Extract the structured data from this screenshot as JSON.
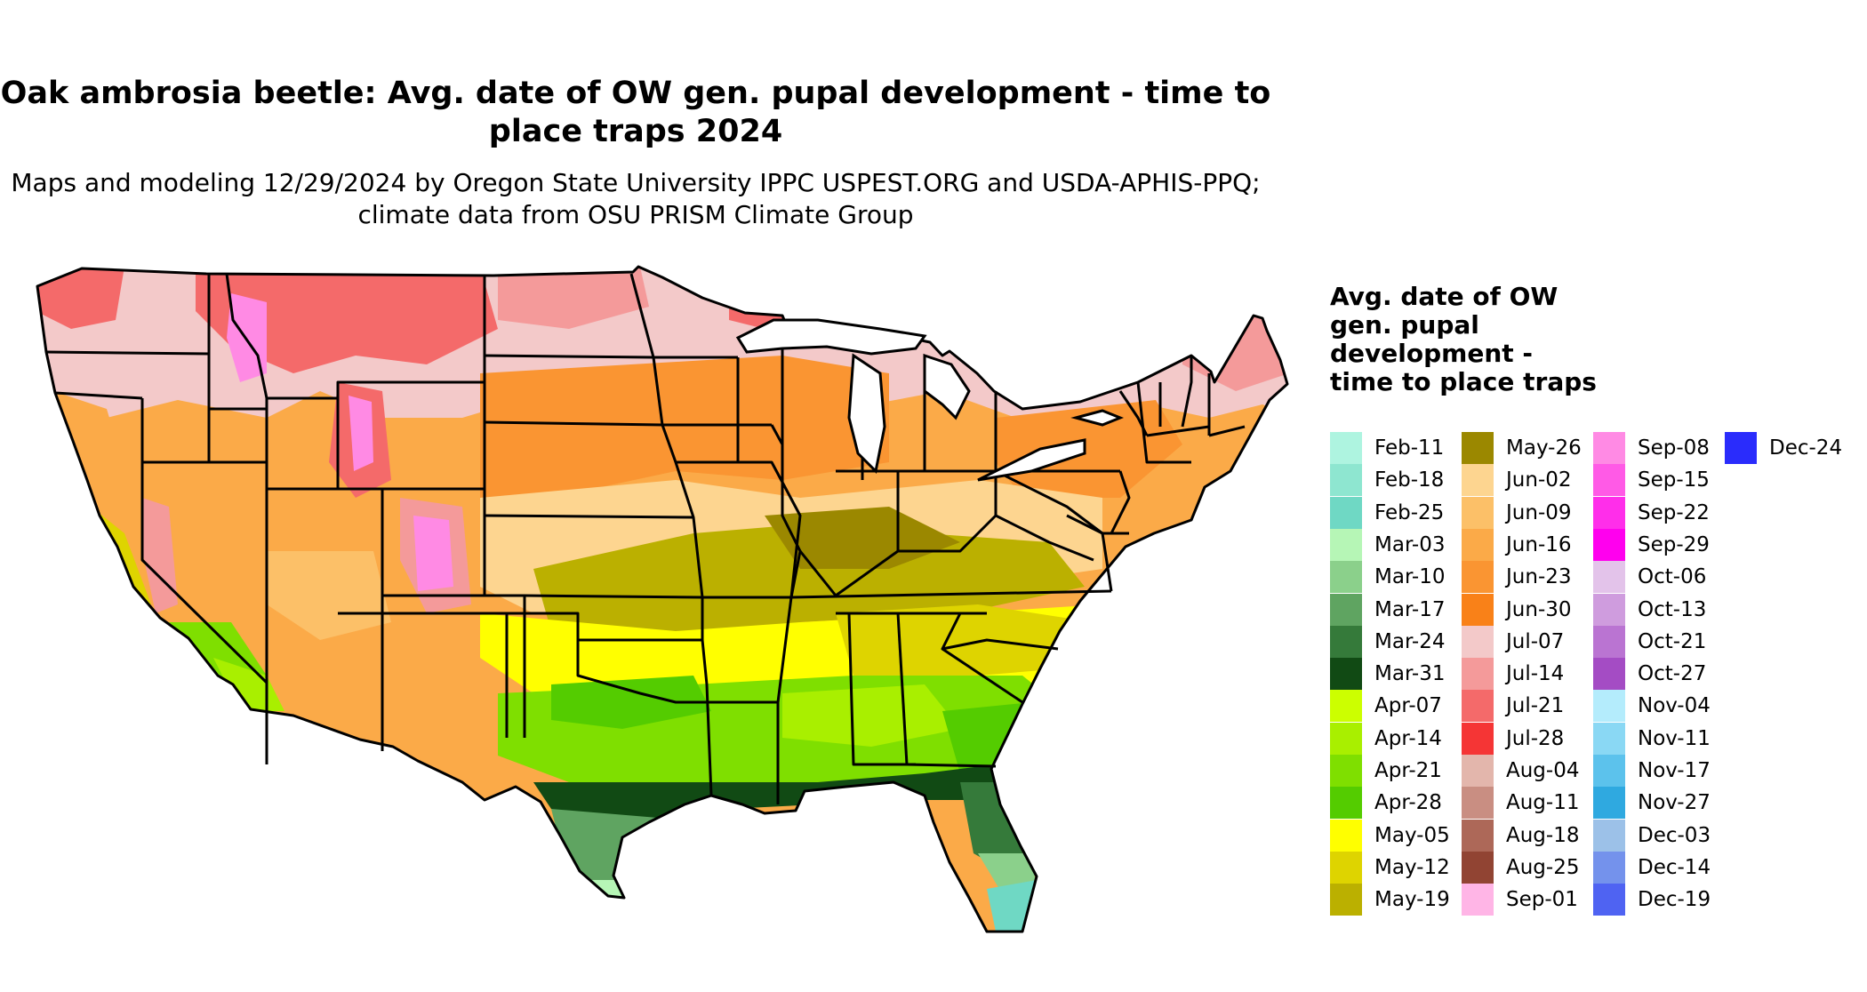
{
  "title": "Oak ambrosia beetle: Avg. date of OW gen. pupal development - time to place traps 2024",
  "subtitle": "Maps and modeling 12/29/2024 by Oregon State University IPPC USPEST.ORG and USDA-APHIS-PPQ; climate data from OSU PRISM Climate Group",
  "legend": {
    "title": "Avg. date of OW gen. pupal development - time to place traps",
    "items": [
      {
        "label": "Feb-11",
        "color": "#aef4e0"
      },
      {
        "label": "Feb-18",
        "color": "#8ee6d0"
      },
      {
        "label": "Feb-25",
        "color": "#6fd8c4"
      },
      {
        "label": "Mar-03",
        "color": "#b6f6b6"
      },
      {
        "label": "Mar-10",
        "color": "#8bd08b"
      },
      {
        "label": "Mar-17",
        "color": "#5fa461"
      },
      {
        "label": "Mar-24",
        "color": "#357a3a"
      },
      {
        "label": "Mar-31",
        "color": "#114a14"
      },
      {
        "label": "Apr-07",
        "color": "#ccff00"
      },
      {
        "label": "Apr-14",
        "color": "#a9ef00"
      },
      {
        "label": "Apr-21",
        "color": "#7fdf00"
      },
      {
        "label": "Apr-28",
        "color": "#54cc00"
      },
      {
        "label": "May-05",
        "color": "#ffff00"
      },
      {
        "label": "May-12",
        "color": "#ded400"
      },
      {
        "label": "May-19",
        "color": "#bbb000"
      },
      {
        "label": "May-26",
        "color": "#9b8800"
      },
      {
        "label": "Jun-02",
        "color": "#fdd590"
      },
      {
        "label": "Jun-09",
        "color": "#fcc068"
      },
      {
        "label": "Jun-16",
        "color": "#fbaa48"
      },
      {
        "label": "Jun-23",
        "color": "#fa9532"
      },
      {
        "label": "Jun-30",
        "color": "#f98118"
      },
      {
        "label": "Jul-07",
        "color": "#f3c9c9"
      },
      {
        "label": "Jul-14",
        "color": "#f49a9a"
      },
      {
        "label": "Jul-21",
        "color": "#f46a6a"
      },
      {
        "label": "Jul-28",
        "color": "#f53535"
      },
      {
        "label": "Aug-04",
        "color": "#e3b6ac"
      },
      {
        "label": "Aug-11",
        "color": "#c98e82"
      },
      {
        "label": "Aug-18",
        "color": "#ad6858"
      },
      {
        "label": "Aug-25",
        "color": "#914433"
      },
      {
        "label": "Sep-01",
        "color": "#ffb5e6"
      },
      {
        "label": "Sep-08",
        "color": "#ff8ae4"
      },
      {
        "label": "Sep-15",
        "color": "#ff5ae6"
      },
      {
        "label": "Sep-22",
        "color": "#ff2eea"
      },
      {
        "label": "Sep-29",
        "color": "#ff00ee"
      },
      {
        "label": "Oct-06",
        "color": "#e3c3ea"
      },
      {
        "label": "Oct-13",
        "color": "#cf9cde"
      },
      {
        "label": "Oct-21",
        "color": "#ba74d2"
      },
      {
        "label": "Oct-27",
        "color": "#a44cc4"
      },
      {
        "label": "Nov-04",
        "color": "#b4ecfc"
      },
      {
        "label": "Nov-11",
        "color": "#8ad8f4"
      },
      {
        "label": "Nov-17",
        "color": "#5cc2ec"
      },
      {
        "label": "Nov-27",
        "color": "#2fa9e0"
      },
      {
        "label": "Dec-03",
        "color": "#9cc1e8"
      },
      {
        "label": "Dec-14",
        "color": "#7492ec"
      },
      {
        "label": "Dec-19",
        "color": "#4f63f2"
      },
      {
        "label": "Dec-24",
        "color": "#2a2cfc"
      }
    ]
  }
}
